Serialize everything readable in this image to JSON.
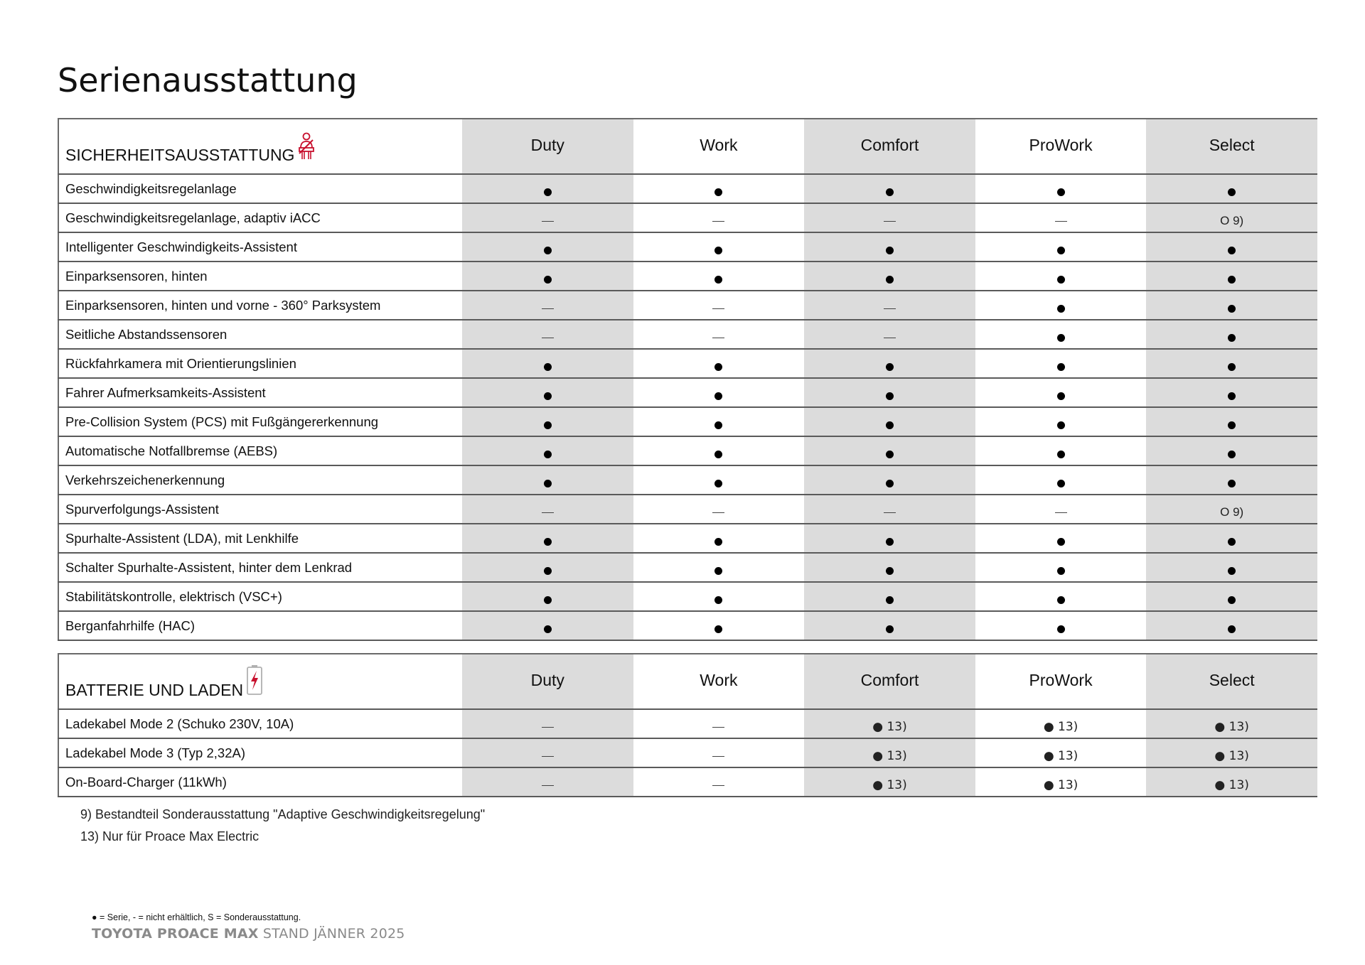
{
  "page_title": "Serienausstattung",
  "columns": [
    "Duty",
    "Work",
    "Comfort",
    "ProWork",
    "Select"
  ],
  "accent_color": "#c8102e",
  "sections": [
    {
      "title": "SICHERHEITSAUSSTATTUNG",
      "icon": "seatbelt-icon",
      "rows": [
        {
          "label": "Geschwindigkeitsregelanlage",
          "values": [
            "●",
            "●",
            "●",
            "●",
            "●"
          ]
        },
        {
          "label": "Geschwindigkeitsregelanlage,  adaptiv  iACC",
          "values": [
            "—",
            "—",
            "—",
            "—",
            "O 9)"
          ]
        },
        {
          "label": "Intelligenter Geschwindigkeits-Assistent",
          "values": [
            "●",
            "●",
            "●",
            "●",
            "●"
          ]
        },
        {
          "label": "Einparksensoren,  hinten",
          "values": [
            "●",
            "●",
            "●",
            "●",
            "●"
          ]
        },
        {
          "label": "Einparksensoren,  hinten  und  vorne - 360° Parksystem",
          "values": [
            "—",
            "—",
            "—",
            "●",
            "●"
          ]
        },
        {
          "label": "Seitliche Abstandssensoren",
          "values": [
            "—",
            "—",
            "—",
            "●",
            "●"
          ]
        },
        {
          "label": "Rückfahrkamera  mit  Orientierungslinien",
          "values": [
            "●",
            "●",
            "●",
            "●",
            "●"
          ]
        },
        {
          "label": "Fahrer  Aufmerksamkeits-Assistent",
          "values": [
            "●",
            "●",
            "●",
            "●",
            "●"
          ]
        },
        {
          "label": "Pre-Collision System (PCS) mit Fußgängererkennung",
          "values": [
            "●",
            "●",
            "●",
            "●",
            "●"
          ]
        },
        {
          "label": "Automatische Notfallbremse (AEBS)",
          "values": [
            "●",
            "●",
            "●",
            "●",
            "●"
          ]
        },
        {
          "label": "Verkehrszeichenerkennung",
          "values": [
            "●",
            "●",
            "●",
            "●",
            "●"
          ]
        },
        {
          "label": "Spurverfolgungs-Assistent",
          "values": [
            "—",
            "—",
            "—",
            "—",
            "O 9)"
          ]
        },
        {
          "label": "Spurhalte-Assistent  (LDA),  mit  Lenkhilfe",
          "values": [
            "●",
            "●",
            "●",
            "●",
            "●"
          ]
        },
        {
          "label": "Schalter  Spurhalte-Assistent,  hinter  dem  Lenkrad",
          "values": [
            "●",
            "●",
            "●",
            "●",
            "●"
          ]
        },
        {
          "label": "Stabilitätskontrolle, elektrisch (VSC+)",
          "values": [
            "●",
            "●",
            "●",
            "●",
            "●"
          ]
        },
        {
          "label": "Berganfahrhilfe (HAC)",
          "values": [
            "●",
            "●",
            "●",
            "●",
            "●"
          ]
        }
      ]
    },
    {
      "title": "BATTERIE UND LADEN",
      "icon": "battery-charging-icon",
      "rows": [
        {
          "label": "Ladekabel Mode 2 (Schuko 230V, 10A)",
          "values": [
            "—",
            "—",
            "● 13)",
            "● 13)",
            "● 13)"
          ]
        },
        {
          "label": "Ladekabel Mode 3 (Typ 2,32A)",
          "values": [
            "—",
            "—",
            "● 13)",
            "● 13)",
            "● 13)"
          ]
        },
        {
          "label": "On-Board-Charger (11kWh)",
          "values": [
            "—",
            "—",
            "● 13)",
            "● 13)",
            "● 13)"
          ]
        }
      ]
    }
  ],
  "footnotes": [
    "9) Bestandteil Sonderausstattung \"Adaptive Geschwindigkeitsregelung\"",
    "13) Nur für Proace Max Electric"
  ],
  "legend": "● = Serie,  - = nicht erhältlich,  S = Sonderausstattung.",
  "brand": {
    "bold": "TOYOTA PROACE MAX",
    "rest": " STAND JÄNNER 2025"
  }
}
